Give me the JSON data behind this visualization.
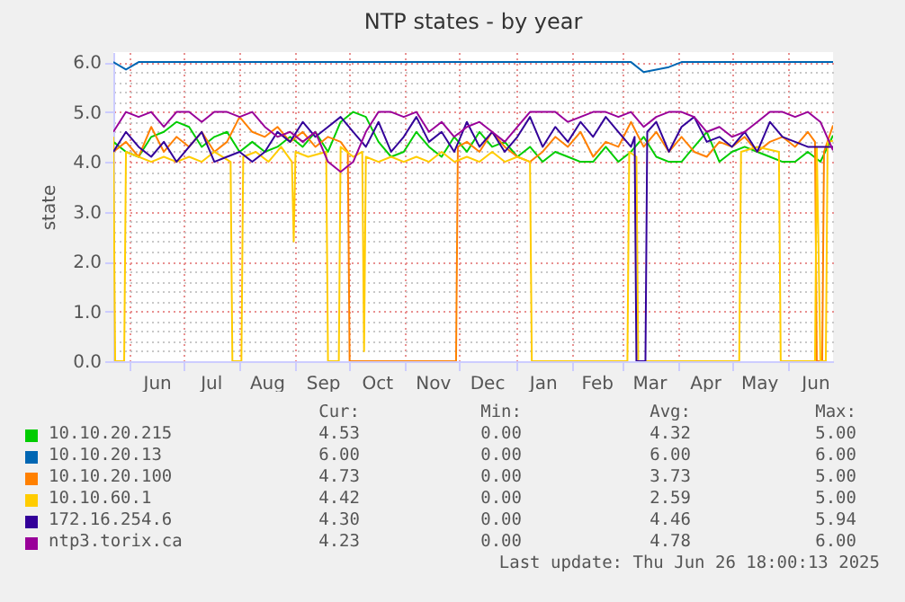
{
  "chart_data": {
    "type": "line",
    "title": "NTP states - by year",
    "ylabel": "state",
    "legend": "bottom",
    "grid": true,
    "line_style": "solid",
    "xlim": [
      "2024-05-23",
      "2025-06-26"
    ],
    "ylim": [
      0,
      6.2
    ],
    "xticks": [
      {
        "value": "2024-06-01",
        "label": null
      },
      {
        "value": "2024-06-16",
        "label": "Jun"
      },
      {
        "value": "2024-07-01",
        "label": null
      },
      {
        "value": "2024-07-16",
        "label": "Jul"
      },
      {
        "value": "2024-08-01",
        "label": null
      },
      {
        "value": "2024-08-16",
        "label": "Aug"
      },
      {
        "value": "2024-09-01",
        "label": null
      },
      {
        "value": "2024-09-16",
        "label": "Sep"
      },
      {
        "value": "2024-10-01",
        "label": null
      },
      {
        "value": "2024-10-16",
        "label": "Oct"
      },
      {
        "value": "2024-11-01",
        "label": null
      },
      {
        "value": "2024-11-16",
        "label": "Nov"
      },
      {
        "value": "2024-12-01",
        "label": null
      },
      {
        "value": "2024-12-16",
        "label": "Dec"
      },
      {
        "value": "2025-01-01",
        "label": null
      },
      {
        "value": "2025-01-16",
        "label": "Jan"
      },
      {
        "value": "2025-02-01",
        "label": null
      },
      {
        "value": "2025-02-15",
        "label": "Feb"
      },
      {
        "value": "2025-03-01",
        "label": null
      },
      {
        "value": "2025-03-16",
        "label": "Mar"
      },
      {
        "value": "2025-04-01",
        "label": null
      },
      {
        "value": "2025-04-16",
        "label": "Apr"
      },
      {
        "value": "2025-05-01",
        "label": null
      },
      {
        "value": "2025-05-16",
        "label": "May"
      },
      {
        "value": "2025-06-01",
        "label": null
      },
      {
        "value": "2025-06-16",
        "label": "Jun"
      }
    ],
    "yticks": [
      {
        "value": 0,
        "label": "0.0"
      },
      {
        "value": 0.2,
        "label": null
      },
      {
        "value": 0.4,
        "label": null
      },
      {
        "value": 0.6,
        "label": null
      },
      {
        "value": 0.8,
        "label": null
      },
      {
        "value": 1,
        "label": "1.0"
      },
      {
        "value": 1.2,
        "label": null
      },
      {
        "value": 1.4,
        "label": null
      },
      {
        "value": 1.6,
        "label": null
      },
      {
        "value": 1.8,
        "label": null
      },
      {
        "value": 2,
        "label": "2.0"
      },
      {
        "value": 2.2,
        "label": null
      },
      {
        "value": 2.4,
        "label": null
      },
      {
        "value": 2.6,
        "label": null
      },
      {
        "value": 2.8,
        "label": null
      },
      {
        "value": 3,
        "label": "3.0"
      },
      {
        "value": 3.2,
        "label": null
      },
      {
        "value": 3.4,
        "label": null
      },
      {
        "value": 3.6,
        "label": null
      },
      {
        "value": 3.8,
        "label": null
      },
      {
        "value": 4,
        "label": "4.0"
      },
      {
        "value": 4.2,
        "label": null
      },
      {
        "value": 4.4,
        "label": null
      },
      {
        "value": 4.6,
        "label": null
      },
      {
        "value": 4.8,
        "label": null
      },
      {
        "value": 5,
        "label": "5.0"
      },
      {
        "value": 5.2,
        "label": null
      },
      {
        "value": 5.4,
        "label": null
      },
      {
        "value": 5.6,
        "label": null
      },
      {
        "value": 5.8,
        "label": null
      },
      {
        "value": 6,
        "label": "6.0"
      }
    ],
    "x": [
      "2024-05-23",
      "2024-05-30",
      "2024-06-06",
      "2024-06-13",
      "2024-06-20",
      "2024-06-27",
      "2024-07-04",
      "2024-07-11",
      "2024-07-18",
      "2024-07-25",
      "2024-08-01",
      "2024-08-08",
      "2024-08-15",
      "2024-08-22",
      "2024-08-29",
      "2024-09-05",
      "2024-09-12",
      "2024-09-19",
      "2024-09-26",
      "2024-10-03",
      "2024-10-10",
      "2024-10-17",
      "2024-10-24",
      "2024-10-31",
      "2024-11-07",
      "2024-11-14",
      "2024-11-21",
      "2024-11-28",
      "2024-12-05",
      "2024-12-12",
      "2024-12-19",
      "2024-12-26",
      "2025-01-02",
      "2025-01-09",
      "2025-01-16",
      "2025-01-23",
      "2025-01-30",
      "2025-02-06",
      "2025-02-13",
      "2025-02-20",
      "2025-02-27",
      "2025-03-06",
      "2025-03-13",
      "2025-03-20",
      "2025-03-27",
      "2025-04-03",
      "2025-04-10",
      "2025-04-17",
      "2025-04-24",
      "2025-05-01",
      "2025-05-08",
      "2025-05-15",
      "2025-05-22",
      "2025-05-29",
      "2025-06-05",
      "2025-06-12",
      "2025-06-19",
      "2025-06-26"
    ],
    "series": [
      {
        "name": "10.10.20.215",
        "color": "#00cc00",
        "values": [
          4.4,
          4.2,
          4.1,
          4.5,
          4.6,
          4.8,
          4.7,
          4.3,
          4.5,
          4.6,
          4.2,
          4.4,
          4.2,
          4.3,
          4.5,
          4.3,
          4.6,
          4.2,
          4.8,
          5.0,
          4.9,
          4.4,
          4.1,
          4.2,
          4.6,
          4.3,
          4.1,
          4.5,
          4.2,
          4.6,
          4.3,
          4.4,
          4.1,
          4.3,
          4.0,
          4.2,
          4.1,
          4.0,
          4.0,
          4.3,
          4.0,
          4.2,
          4.5,
          4.1,
          4.0,
          4.0,
          4.3,
          4.6,
          4.0,
          4.2,
          4.3,
          4.2,
          4.1,
          4.0,
          4.0,
          4.2,
          4.0,
          4.53
        ]
      },
      {
        "name": "10.10.20.13",
        "color": "#0066b3",
        "values": [
          6.0,
          5.85,
          6.0,
          6.0,
          6.0,
          6.0,
          6.0,
          6.0,
          6.0,
          6.0,
          6.0,
          6.0,
          6.0,
          6.0,
          6.0,
          6.0,
          6.0,
          6.0,
          6.0,
          6.0,
          6.0,
          6.0,
          6.0,
          6.0,
          6.0,
          6.0,
          6.0,
          6.0,
          6.0,
          6.0,
          6.0,
          6.0,
          6.0,
          6.0,
          6.0,
          6.0,
          6.0,
          6.0,
          6.0,
          6.0,
          6.0,
          6.0,
          5.8,
          5.85,
          5.9,
          6.0,
          6.0,
          6.0,
          6.0,
          6.0,
          6.0,
          6.0,
          6.0,
          6.0,
          6.0,
          6.0,
          6.0,
          6.0
        ]
      },
      {
        "name": "10.10.20.100",
        "color": "#ff8000",
        "x": [
          "2024-05-23",
          "2024-05-30",
          "2024-06-06",
          "2024-06-13",
          "2024-06-20",
          "2024-06-27",
          "2024-07-04",
          "2024-07-11",
          "2024-07-18",
          "2024-07-25",
          "2024-08-01",
          "2024-08-08",
          "2024-08-15",
          "2024-08-22",
          "2024-08-29",
          "2024-09-05",
          "2024-09-12",
          "2024-09-19",
          "2024-09-26",
          "2024-09-30",
          "2024-10-01",
          "2024-11-29",
          "2024-11-30",
          "2024-12-05",
          "2024-12-12",
          "2024-12-19",
          "2024-12-26",
          "2025-01-02",
          "2025-01-09",
          "2025-01-16",
          "2025-01-23",
          "2025-01-30",
          "2025-02-06",
          "2025-02-13",
          "2025-02-20",
          "2025-02-27",
          "2025-03-06",
          "2025-03-13",
          "2025-03-20",
          "2025-03-27",
          "2025-04-03",
          "2025-04-10",
          "2025-04-17",
          "2025-04-24",
          "2025-05-01",
          "2025-05-08",
          "2025-05-15",
          "2025-05-22",
          "2025-05-29",
          "2025-06-05",
          "2025-06-12",
          "2025-06-16",
          "2025-06-17",
          "2025-06-20",
          "2025-06-21",
          "2025-06-26"
        ],
        "values": [
          4.2,
          4.4,
          4.1,
          4.7,
          4.2,
          4.5,
          4.3,
          4.6,
          4.2,
          4.4,
          4.9,
          4.6,
          4.5,
          4.7,
          4.4,
          4.6,
          4.3,
          4.5,
          4.4,
          4.2,
          0,
          0,
          4.3,
          4.4,
          4.2,
          4.6,
          4.3,
          4.1,
          4.0,
          4.2,
          4.5,
          4.3,
          4.6,
          4.1,
          4.4,
          4.3,
          4.8,
          4.3,
          4.6,
          4.2,
          4.5,
          4.2,
          4.1,
          4.4,
          4.3,
          4.5,
          4.2,
          4.4,
          4.5,
          4.3,
          4.6,
          4.4,
          0,
          0,
          4.2,
          4.73
        ]
      },
      {
        "name": "10.10.60.1",
        "color": "#ffcc00",
        "x": [
          "2024-05-23",
          "2024-05-24",
          "2024-05-29",
          "2024-05-30",
          "2024-06-06",
          "2024-06-13",
          "2024-06-20",
          "2024-06-27",
          "2024-07-04",
          "2024-07-11",
          "2024-07-18",
          "2024-07-27",
          "2024-07-28",
          "2024-08-02",
          "2024-08-03",
          "2024-08-10",
          "2024-08-17",
          "2024-08-24",
          "2024-08-30",
          "2024-08-31",
          "2024-09-01",
          "2024-09-08",
          "2024-09-18",
          "2024-09-19",
          "2024-09-25",
          "2024-09-26",
          "2024-10-03",
          "2024-10-08",
          "2024-10-09",
          "2024-10-10",
          "2024-10-17",
          "2024-10-24",
          "2024-10-31",
          "2024-11-07",
          "2024-11-14",
          "2024-11-21",
          "2024-11-28",
          "2024-12-05",
          "2024-12-12",
          "2024-12-19",
          "2024-12-26",
          "2025-01-02",
          "2025-01-09",
          "2025-01-10",
          "2025-03-04",
          "2025-03-05",
          "2025-03-09",
          "2025-03-10",
          "2025-05-05",
          "2025-05-06",
          "2025-05-15",
          "2025-05-27",
          "2025-05-28",
          "2025-06-16",
          "2025-06-17",
          "2025-06-19",
          "2025-06-22",
          "2025-06-23",
          "2025-06-26"
        ],
        "values": [
          4.5,
          0,
          0,
          4.2,
          4.1,
          4.0,
          4.1,
          4.0,
          4.1,
          4.0,
          4.2,
          4.0,
          0,
          0,
          4.1,
          4.2,
          4.0,
          4.3,
          4.0,
          2.4,
          4.2,
          4.1,
          4.2,
          0,
          0,
          4.3,
          4.1,
          4.2,
          0.2,
          4.1,
          4.0,
          4.1,
          4.0,
          4.1,
          4.0,
          4.2,
          4.0,
          4.1,
          4.0,
          4.2,
          4.0,
          4.1,
          4.0,
          0,
          0,
          4.2,
          4.1,
          0,
          0,
          4.2,
          4.3,
          4.2,
          0,
          0,
          4.3,
          0,
          0,
          4.4,
          4.42
        ]
      },
      {
        "name": "172.16.254.6",
        "color": "#330099",
        "x": [
          "2024-05-23",
          "2024-05-30",
          "2024-06-06",
          "2024-06-13",
          "2024-06-20",
          "2024-06-27",
          "2024-07-04",
          "2024-07-11",
          "2024-07-18",
          "2024-07-25",
          "2024-08-01",
          "2024-08-08",
          "2024-08-15",
          "2024-08-22",
          "2024-08-29",
          "2024-09-05",
          "2024-09-12",
          "2024-09-19",
          "2024-09-26",
          "2024-10-03",
          "2024-10-10",
          "2024-10-17",
          "2024-10-24",
          "2024-10-31",
          "2024-11-07",
          "2024-11-14",
          "2024-11-21",
          "2024-11-28",
          "2024-12-05",
          "2024-12-12",
          "2024-12-19",
          "2024-12-26",
          "2025-01-02",
          "2025-01-09",
          "2025-01-16",
          "2025-01-23",
          "2025-01-30",
          "2025-02-06",
          "2025-02-13",
          "2025-02-20",
          "2025-02-27",
          "2025-03-06",
          "2025-03-08",
          "2025-03-09",
          "2025-03-14",
          "2025-03-15",
          "2025-03-20",
          "2025-03-27",
          "2025-04-03",
          "2025-04-10",
          "2025-04-17",
          "2025-04-24",
          "2025-05-01",
          "2025-05-08",
          "2025-05-15",
          "2025-05-22",
          "2025-05-29",
          "2025-06-05",
          "2025-06-12",
          "2025-06-19",
          "2025-06-26"
        ],
        "values": [
          4.2,
          4.6,
          4.3,
          4.1,
          4.4,
          4.0,
          4.3,
          4.6,
          4.0,
          4.1,
          4.2,
          4.0,
          4.2,
          4.6,
          4.4,
          4.8,
          4.5,
          4.7,
          4.9,
          4.6,
          4.3,
          4.8,
          4.2,
          4.5,
          4.9,
          4.4,
          4.6,
          4.2,
          4.8,
          4.3,
          4.6,
          4.2,
          4.5,
          4.9,
          4.3,
          4.7,
          4.4,
          4.8,
          4.5,
          4.9,
          4.6,
          4.3,
          4.5,
          0,
          0,
          4.6,
          4.8,
          4.2,
          4.7,
          4.9,
          4.4,
          4.5,
          4.3,
          4.6,
          4.2,
          4.8,
          4.5,
          4.4,
          4.3,
          4.3,
          4.3
        ]
      },
      {
        "name": "ntp3.torix.ca",
        "color": "#990099",
        "values": [
          4.6,
          5.0,
          4.9,
          5.0,
          4.7,
          5.0,
          5.0,
          4.8,
          5.0,
          5.0,
          4.9,
          5.0,
          4.7,
          4.5,
          4.6,
          4.4,
          4.6,
          4.0,
          3.8,
          4.0,
          4.6,
          5.0,
          5.0,
          4.9,
          5.0,
          4.6,
          4.8,
          4.5,
          4.7,
          4.8,
          4.6,
          4.4,
          4.7,
          5.0,
          5.0,
          5.0,
          4.8,
          4.9,
          5.0,
          5.0,
          4.9,
          5.0,
          4.7,
          4.9,
          5.0,
          5.0,
          4.9,
          4.6,
          4.7,
          4.5,
          4.6,
          4.8,
          5.0,
          5.0,
          4.9,
          5.0,
          4.8,
          4.23
        ]
      }
    ],
    "annotations": [
      "Cur:",
      "Min:",
      "Avg:",
      "Max:",
      "4.53",
      "0.00",
      "4.32",
      "5.00",
      "6.00",
      "0.00",
      "6.00",
      "6.00",
      "4.73",
      "0.00",
      "3.73",
      "5.00",
      "4.42",
      "0.00",
      "2.59",
      "5.00",
      "4.30",
      "0.00",
      "4.46",
      "5.94",
      "4.23",
      "0.00",
      "4.78",
      "6.00",
      "Last update: Thu Jun 26 18:00:13 2025"
    ]
  }
}
